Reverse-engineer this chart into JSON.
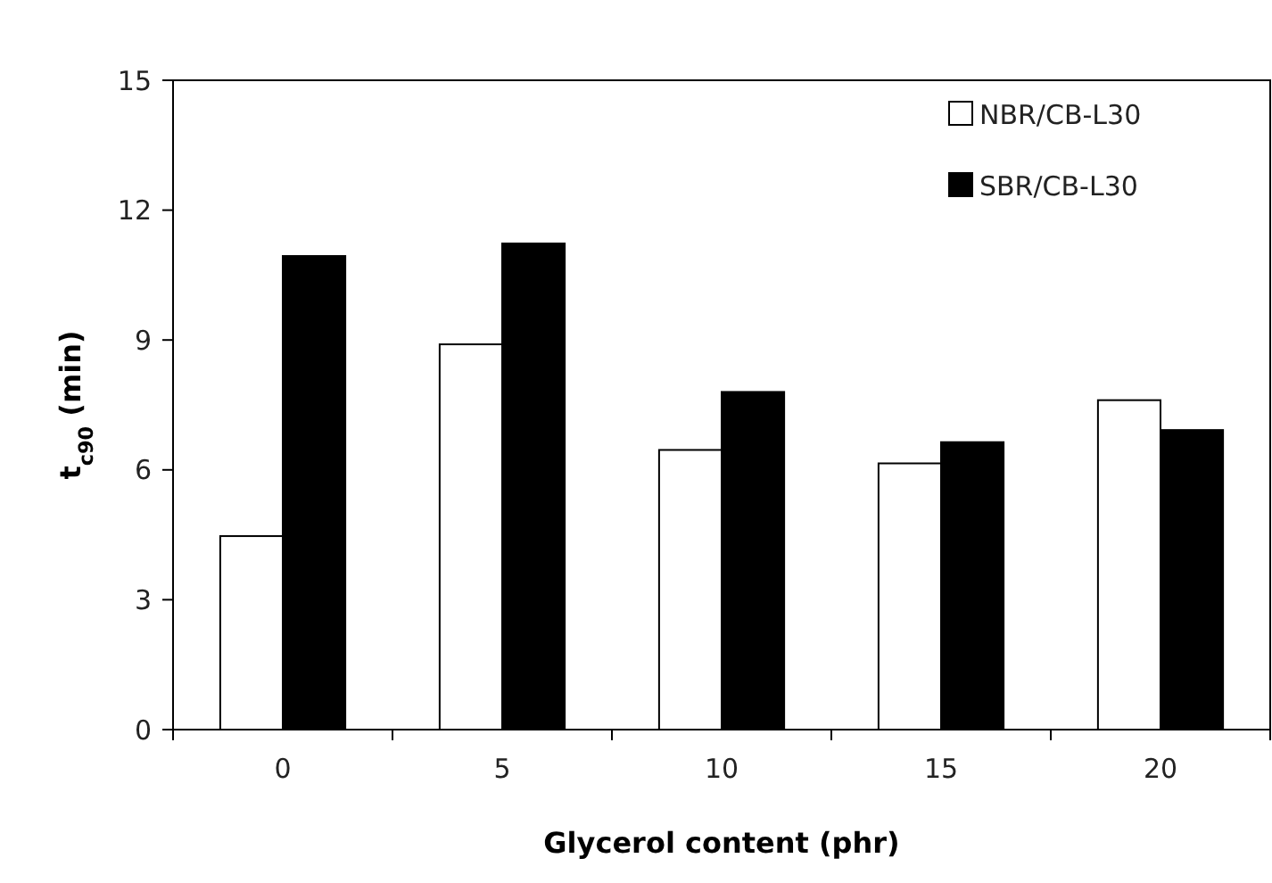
{
  "chart_data": {
    "type": "bar",
    "xlabel": "Glycerol content (phr)",
    "ylabel": "t$_{c90}$ (min)",
    "categories": [
      "0",
      "5",
      "10",
      "15",
      "20"
    ],
    "series": [
      {
        "name": "NBR/CB-L30",
        "color": "#ffffff",
        "values": [
          4.47,
          8.9,
          6.46,
          6.15,
          7.61
        ]
      },
      {
        "name": "SBR/CB-L30",
        "color": "#000000",
        "values": [
          10.94,
          11.23,
          7.8,
          6.64,
          6.92
        ]
      }
    ],
    "ylim": [
      0,
      15
    ],
    "yticks": [
      0,
      3,
      6,
      9,
      12,
      15
    ],
    "grid": false,
    "legend": "top right"
  }
}
